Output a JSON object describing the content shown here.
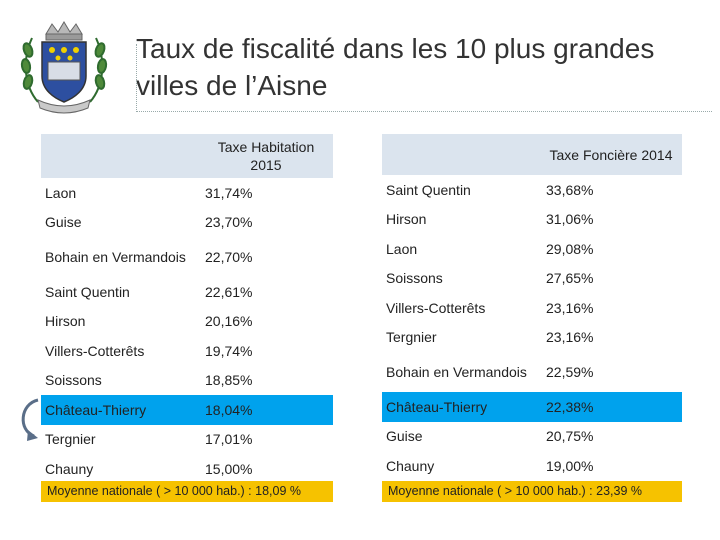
{
  "title": "Taux de fiscalité dans les 10 plus grandes villes de l’Aisne",
  "table_habitation": {
    "header": "Taxe Habitation 2015",
    "rows": [
      {
        "city": "Laon",
        "value": "31,74%"
      },
      {
        "city": "Guise",
        "value": "23,70%"
      },
      {
        "city": "Bohain en Vermandois",
        "value": "22,70%"
      },
      {
        "city": "Saint Quentin",
        "value": "22,61%"
      },
      {
        "city": "Hirson",
        "value": "20,16%"
      },
      {
        "city": "Villers-Cotterêts",
        "value": "19,74%"
      },
      {
        "city": "Soissons",
        "value": "18,85%"
      },
      {
        "city": "Château-Thierry",
        "value": "18,04%"
      },
      {
        "city": "Tergnier",
        "value": "17,01%"
      },
      {
        "city": "Chauny",
        "value": "15,00%"
      }
    ],
    "average": "Moyenne nationale ( > 10 000 hab.) : 18,09 %"
  },
  "table_fonciere": {
    "header": "Taxe Foncière 2014",
    "rows": [
      {
        "city": "Saint Quentin",
        "value": "33,68%"
      },
      {
        "city": "Hirson",
        "value": "31,06%"
      },
      {
        "city": "Laon",
        "value": "29,08%"
      },
      {
        "city": "Soissons",
        "value": "27,65%"
      },
      {
        "city": "Villers-Cotterêts",
        "value": "23,16%"
      },
      {
        "city": "Tergnier",
        "value": "23,16%"
      },
      {
        "city": "Bohain en Vermandois",
        "value": "22,59%"
      },
      {
        "city": "Château-Thierry",
        "value": "22,38%"
      },
      {
        "city": "Guise",
        "value": "20,75%"
      },
      {
        "city": "Chauny",
        "value": "19,00%"
      }
    ],
    "average": "Moyenne nationale ( > 10 000 hab.) : 23,39 %"
  },
  "colors": {
    "highlight": "#00a2ed",
    "average_bg": "#f6c200",
    "header_bg": "#dbe4ee",
    "arrow": "#5a6e88"
  },
  "icons": {
    "logo": "coat-of-arms-icon",
    "arrow": "curved-arrow-icon"
  }
}
